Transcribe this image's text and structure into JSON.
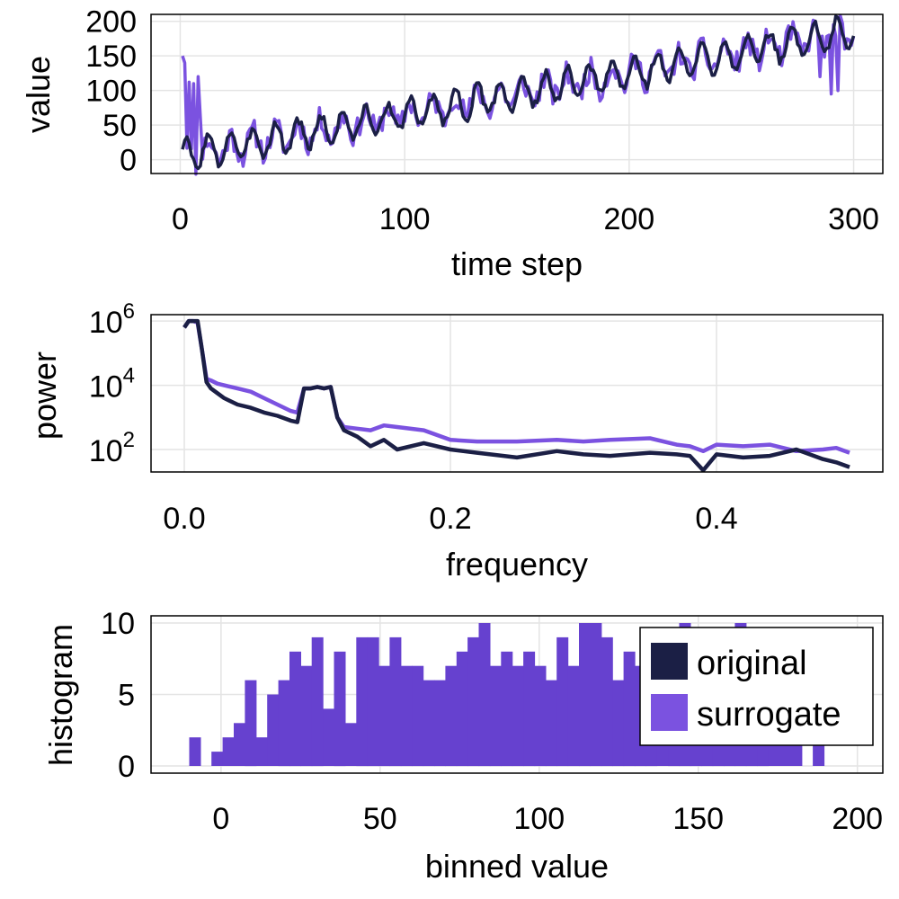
{
  "colors": {
    "original": "#1b1f45",
    "surrogate": "#7b52e0",
    "hist": "#6641cf",
    "grid": "#e4e4e4"
  },
  "legend": {
    "entries": [
      "original",
      "surrogate"
    ]
  },
  "chart_data": [
    {
      "type": "line",
      "xlabel": "time step",
      "ylabel": "value",
      "xlim": [
        -13,
        313
      ],
      "ylim": [
        -20,
        210
      ],
      "xticks": [
        0,
        100,
        200,
        300
      ],
      "yticks": [
        0,
        50,
        100,
        150,
        200
      ],
      "grid": true,
      "series": [
        {
          "name": "original",
          "generator": {
            "n": 300,
            "slope": 0.6,
            "offset": 5,
            "amp": 22,
            "period": 10,
            "noise": 7,
            "seed": 3
          }
        },
        {
          "name": "surrogate",
          "generator": {
            "n": 300,
            "slope": 0.6,
            "offset": 5,
            "amp": 16,
            "period": 10,
            "noise": 18,
            "seed": 11,
            "overrides": [
              [
                1,
                150
              ],
              [
                2,
                140
              ],
              [
                4,
                112
              ],
              [
                6,
                110
              ],
              [
                8,
                120
              ],
              [
                9,
                60
              ],
              [
                285,
                120
              ],
              [
                290,
                95
              ],
              [
                293,
                100
              ],
              [
                296,
                160
              ],
              [
                299,
                165
              ]
            ]
          }
        }
      ]
    },
    {
      "type": "line",
      "xlabel": "frequency",
      "ylabel": "power",
      "xlim": [
        -0.025,
        0.525
      ],
      "ylim_log10": [
        1.3,
        6.2
      ],
      "yscale": "log",
      "xticks": [
        "0.0",
        "0.2",
        "0.4"
      ],
      "yticks": [
        "10^6",
        "10^4",
        "10^2"
      ],
      "grid": true,
      "series": [
        {
          "name": "original",
          "points": [
            [
              0.0,
              5.8
            ],
            [
              0.0033,
              6.0
            ],
            [
              0.0067,
              6.0
            ],
            [
              0.01,
              6.0
            ],
            [
              0.0133,
              5.1
            ],
            [
              0.0167,
              4.1
            ],
            [
              0.02,
              3.9
            ],
            [
              0.025,
              3.75
            ],
            [
              0.03,
              3.6
            ],
            [
              0.04,
              3.4
            ],
            [
              0.05,
              3.3
            ],
            [
              0.06,
              3.15
            ],
            [
              0.07,
              3.05
            ],
            [
              0.08,
              2.9
            ],
            [
              0.085,
              2.85
            ],
            [
              0.09,
              3.9
            ],
            [
              0.095,
              3.9
            ],
            [
              0.1,
              3.95
            ],
            [
              0.105,
              3.9
            ],
            [
              0.11,
              3.95
            ],
            [
              0.115,
              3.0
            ],
            [
              0.12,
              2.6
            ],
            [
              0.13,
              2.4
            ],
            [
              0.14,
              2.1
            ],
            [
              0.15,
              2.3
            ],
            [
              0.16,
              2.0
            ],
            [
              0.18,
              2.2
            ],
            [
              0.2,
              2.0
            ],
            [
              0.22,
              1.9
            ],
            [
              0.25,
              1.75
            ],
            [
              0.28,
              1.95
            ],
            [
              0.3,
              1.85
            ],
            [
              0.32,
              1.8
            ],
            [
              0.35,
              1.9
            ],
            [
              0.37,
              1.85
            ],
            [
              0.38,
              1.8
            ],
            [
              0.39,
              1.35
            ],
            [
              0.4,
              1.85
            ],
            [
              0.42,
              1.75
            ],
            [
              0.44,
              1.8
            ],
            [
              0.46,
              2.0
            ],
            [
              0.48,
              1.7
            ],
            [
              0.49,
              1.6
            ],
            [
              0.5,
              1.45
            ]
          ]
        },
        {
          "name": "surrogate",
          "points": [
            [
              0.0,
              5.8
            ],
            [
              0.0033,
              6.0
            ],
            [
              0.0067,
              6.0
            ],
            [
              0.01,
              5.95
            ],
            [
              0.0133,
              5.1
            ],
            [
              0.0167,
              4.2
            ],
            [
              0.02,
              4.15
            ],
            [
              0.025,
              4.05
            ],
            [
              0.03,
              4.0
            ],
            [
              0.04,
              3.9
            ],
            [
              0.05,
              3.8
            ],
            [
              0.06,
              3.6
            ],
            [
              0.07,
              3.4
            ],
            [
              0.08,
              3.2
            ],
            [
              0.085,
              3.15
            ],
            [
              0.09,
              3.9
            ],
            [
              0.095,
              3.9
            ],
            [
              0.1,
              3.95
            ],
            [
              0.105,
              3.9
            ],
            [
              0.11,
              3.95
            ],
            [
              0.115,
              3.0
            ],
            [
              0.12,
              2.7
            ],
            [
              0.13,
              2.65
            ],
            [
              0.14,
              2.6
            ],
            [
              0.15,
              2.75
            ],
            [
              0.16,
              2.7
            ],
            [
              0.18,
              2.6
            ],
            [
              0.2,
              2.3
            ],
            [
              0.22,
              2.25
            ],
            [
              0.25,
              2.25
            ],
            [
              0.28,
              2.3
            ],
            [
              0.3,
              2.25
            ],
            [
              0.32,
              2.3
            ],
            [
              0.35,
              2.35
            ],
            [
              0.37,
              2.15
            ],
            [
              0.38,
              2.1
            ],
            [
              0.39,
              1.95
            ],
            [
              0.4,
              2.15
            ],
            [
              0.42,
              2.1
            ],
            [
              0.44,
              2.15
            ],
            [
              0.46,
              1.95
            ],
            [
              0.48,
              2.0
            ],
            [
              0.49,
              2.05
            ],
            [
              0.5,
              1.9
            ]
          ]
        }
      ]
    },
    {
      "type": "bar",
      "xlabel": "binned value",
      "ylabel": "histogram",
      "xlim": [
        -22,
        208
      ],
      "ylim": [
        -0.5,
        10.5
      ],
      "xticks": [
        0,
        50,
        100,
        150,
        200
      ],
      "yticks": [
        0,
        5,
        10
      ],
      "grid": true,
      "bin_start": -10,
      "bin_width": 3.5,
      "counts": [
        2,
        0,
        1,
        2,
        3,
        6,
        2,
        5,
        6,
        8,
        7,
        9,
        4,
        8,
        3,
        9,
        9,
        7,
        9,
        7,
        7,
        6,
        6,
        7,
        8,
        9,
        10,
        7,
        8,
        7,
        8,
        7,
        6,
        9,
        7,
        10,
        10,
        9,
        6,
        8,
        7,
        9,
        5,
        6,
        10,
        6,
        7,
        6,
        9,
        10,
        7,
        6,
        4,
        5,
        2,
        0,
        2
      ]
    }
  ]
}
